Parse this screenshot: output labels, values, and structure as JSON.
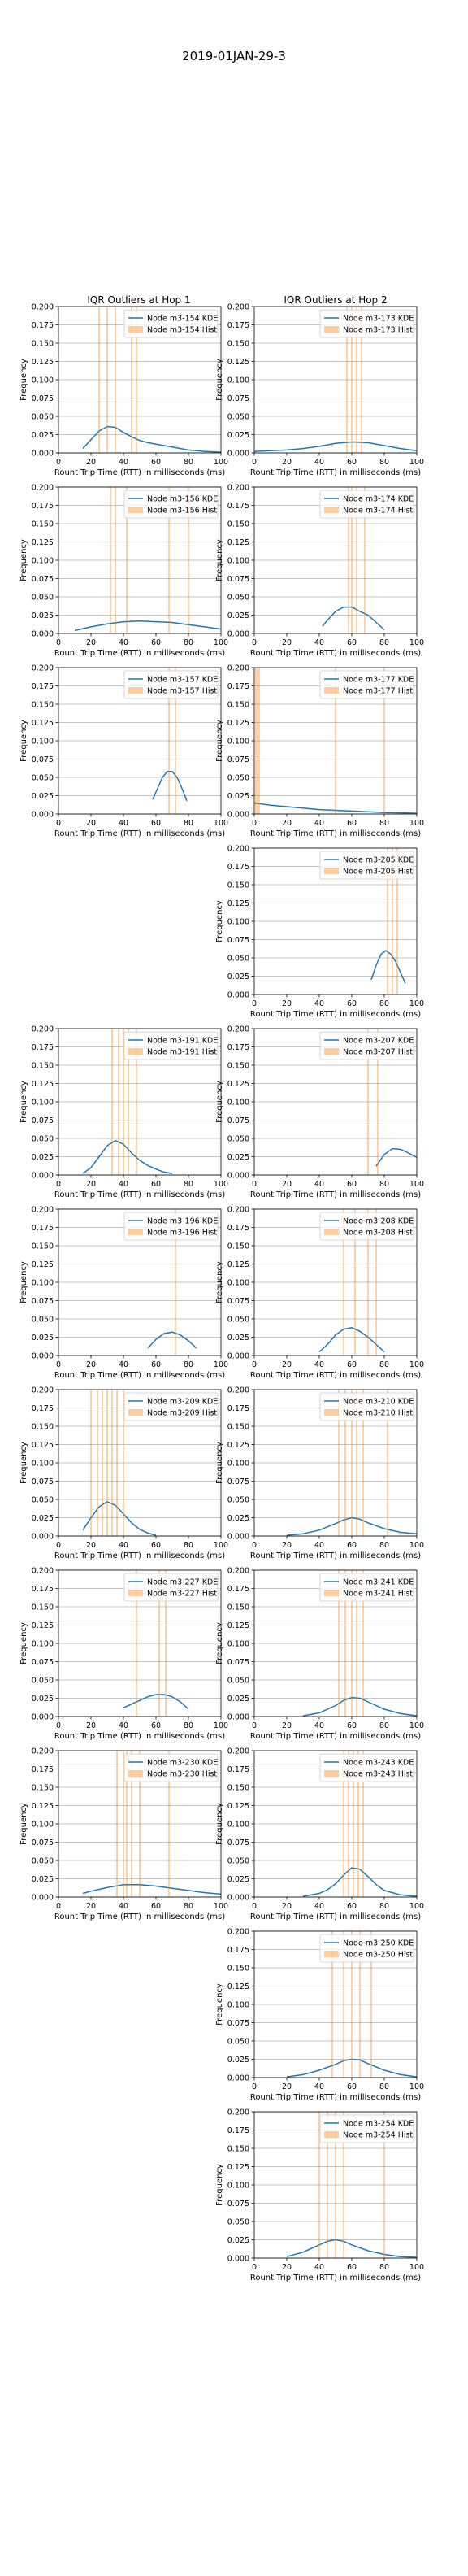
{
  "figure": {
    "suptitle": "2019-01JAN-29-3",
    "column_titles": [
      "IQR Outliers at Hop 1",
      "IQR Outliers at Hop 2"
    ]
  },
  "colors": {
    "kde": "#1f77b4",
    "hist": "#ff7f0e"
  },
  "axes_common": {
    "xlabel": "Rount Trip Time (RTT) in milliseconds (ms)",
    "ylabel": "Frequency",
    "xlim": [
      0,
      100
    ],
    "ylim": [
      0,
      0.2
    ],
    "xticks": [
      0,
      20,
      40,
      60,
      80,
      100
    ],
    "yticks": [
      "0.000",
      "0.025",
      "0.050",
      "0.075",
      "0.100",
      "0.125",
      "0.150",
      "0.175",
      "0.200"
    ],
    "grid": "y",
    "legend": "top-right"
  },
  "chart_data": [
    {
      "type": "line",
      "row": 0,
      "col": 0,
      "series": [
        {
          "name": "Node m3-154 KDE",
          "kind": "kde",
          "x": [
            15,
            20,
            25,
            30,
            35,
            40,
            45,
            50,
            55,
            60,
            65,
            70,
            75,
            80,
            85,
            90,
            95,
            100
          ],
          "y": [
            0.006,
            0.018,
            0.03,
            0.036,
            0.035,
            0.028,
            0.022,
            0.017,
            0.014,
            0.012,
            0.01,
            0.008,
            0.006,
            0.004,
            0.003,
            0.002,
            0.0015,
            0.001
          ]
        },
        {
          "name": "Node m3-154 Hist",
          "kind": "hist",
          "x": [
            25,
            30,
            35,
            45,
            48
          ],
          "height": 0.2
        }
      ]
    },
    {
      "type": "line",
      "row": 0,
      "col": 1,
      "series": [
        {
          "name": "Node m3-173 KDE",
          "kind": "kde",
          "x": [
            0,
            10,
            20,
            30,
            40,
            50,
            60,
            70,
            80,
            90,
            100
          ],
          "y": [
            0.002,
            0.003,
            0.004,
            0.006,
            0.009,
            0.013,
            0.015,
            0.014,
            0.01,
            0.006,
            0.003
          ]
        },
        {
          "name": "Node m3-173 Hist",
          "kind": "hist",
          "x": [
            57,
            60,
            63,
            66
          ],
          "height": 0.2
        }
      ]
    },
    {
      "type": "line",
      "row": 1,
      "col": 0,
      "series": [
        {
          "name": "Node m3-156 KDE",
          "kind": "kde",
          "x": [
            10,
            20,
            30,
            40,
            50,
            60,
            70,
            80,
            90,
            100
          ],
          "y": [
            0.004,
            0.009,
            0.013,
            0.016,
            0.017,
            0.016,
            0.015,
            0.012,
            0.009,
            0.006
          ]
        },
        {
          "name": "Node m3-156 Hist",
          "kind": "hist",
          "x": [
            32,
            35,
            42,
            68,
            80
          ],
          "height": 0.2
        }
      ]
    },
    {
      "type": "line",
      "row": 1,
      "col": 1,
      "series": [
        {
          "name": "Node m3-174 KDE",
          "kind": "kde",
          "x": [
            42,
            45,
            50,
            55,
            60,
            65,
            70,
            75,
            80
          ],
          "y": [
            0.01,
            0.018,
            0.03,
            0.036,
            0.036,
            0.03,
            0.025,
            0.015,
            0.005
          ]
        },
        {
          "name": "Node m3-174 Hist",
          "kind": "hist",
          "x": [
            58,
            60,
            63,
            68
          ],
          "height": 0.2
        }
      ]
    },
    {
      "type": "line",
      "row": 2,
      "col": 0,
      "series": [
        {
          "name": "Node m3-157 KDE",
          "kind": "kde",
          "x": [
            58,
            61,
            64,
            67,
            70,
            73,
            76,
            79
          ],
          "y": [
            0.02,
            0.035,
            0.05,
            0.058,
            0.058,
            0.05,
            0.035,
            0.018
          ]
        },
        {
          "name": "Node m3-157 Hist",
          "kind": "hist",
          "x": [
            68,
            72
          ],
          "height": 0.2
        }
      ]
    },
    {
      "type": "line",
      "row": 2,
      "col": 1,
      "series": [
        {
          "name": "Node m3-177 KDE",
          "kind": "kde",
          "x": [
            0,
            10,
            20,
            30,
            40,
            50,
            60,
            70,
            80,
            90,
            100
          ],
          "y": [
            0.015,
            0.012,
            0.01,
            0.008,
            0.006,
            0.005,
            0.004,
            0.003,
            0.002,
            0.0015,
            0.001
          ]
        },
        {
          "name": "Node m3-177 Hist",
          "kind": "hist",
          "x": [
            1,
            2,
            3,
            50,
            80
          ],
          "height": 0.2
        }
      ]
    },
    {
      "type": "line",
      "row": 3,
      "col": 1,
      "series": [
        {
          "name": "Node m3-205 KDE",
          "kind": "kde",
          "x": [
            72,
            75,
            78,
            81,
            84,
            87,
            90,
            93
          ],
          "y": [
            0.02,
            0.04,
            0.055,
            0.06,
            0.055,
            0.045,
            0.03,
            0.015
          ]
        },
        {
          "name": "Node m3-205 Hist",
          "kind": "hist",
          "x": [
            82,
            85,
            88
          ],
          "height": 0.2
        }
      ]
    },
    {
      "type": "line",
      "row": 4,
      "col": 0,
      "series": [
        {
          "name": "Node m3-191 KDE",
          "kind": "kde",
          "x": [
            15,
            20,
            25,
            30,
            35,
            40,
            45,
            50,
            55,
            60,
            65,
            70
          ],
          "y": [
            0.002,
            0.01,
            0.025,
            0.04,
            0.047,
            0.042,
            0.03,
            0.02,
            0.013,
            0.008,
            0.004,
            0.002
          ]
        },
        {
          "name": "Node m3-191 Hist",
          "kind": "hist",
          "x": [
            33,
            37,
            40,
            43,
            48
          ],
          "height": 0.2
        }
      ]
    },
    {
      "type": "line",
      "row": 4,
      "col": 1,
      "series": [
        {
          "name": "Node m3-207 KDE",
          "kind": "kde",
          "x": [
            75,
            80,
            85,
            90,
            95,
            100
          ],
          "y": [
            0.012,
            0.028,
            0.036,
            0.035,
            0.03,
            0.024
          ]
        },
        {
          "name": "Node m3-207 Hist",
          "kind": "hist",
          "x": [
            70,
            76
          ],
          "height": 0.2
        }
      ]
    },
    {
      "type": "line",
      "row": 5,
      "col": 0,
      "series": [
        {
          "name": "Node m3-196 KDE",
          "kind": "kde",
          "x": [
            55,
            60,
            65,
            70,
            75,
            80,
            85
          ],
          "y": [
            0.01,
            0.022,
            0.03,
            0.032,
            0.028,
            0.02,
            0.01
          ]
        },
        {
          "name": "Node m3-196 Hist",
          "kind": "hist",
          "x": [
            72
          ],
          "height": 0.2
        }
      ]
    },
    {
      "type": "line",
      "row": 5,
      "col": 1,
      "series": [
        {
          "name": "Node m3-208 KDE",
          "kind": "kde",
          "x": [
            40,
            45,
            50,
            55,
            60,
            65,
            70,
            75,
            80
          ],
          "y": [
            0.005,
            0.015,
            0.028,
            0.036,
            0.038,
            0.033,
            0.025,
            0.015,
            0.005
          ]
        },
        {
          "name": "Node m3-208 Hist",
          "kind": "hist",
          "x": [
            55,
            62,
            70,
            75
          ],
          "height": 0.2
        }
      ]
    },
    {
      "type": "line",
      "row": 6,
      "col": 0,
      "series": [
        {
          "name": "Node m3-209 KDE",
          "kind": "kde",
          "x": [
            15,
            20,
            25,
            30,
            35,
            40,
            45,
            50,
            55,
            60
          ],
          "y": [
            0.008,
            0.025,
            0.04,
            0.047,
            0.042,
            0.03,
            0.018,
            0.009,
            0.004,
            0.001
          ]
        },
        {
          "name": "Node m3-209 Hist",
          "kind": "hist",
          "x": [
            20,
            24,
            27,
            30,
            33,
            36,
            40
          ],
          "height": 0.2
        }
      ]
    },
    {
      "type": "line",
      "row": 6,
      "col": 1,
      "series": [
        {
          "name": "Node m3-210 KDE",
          "kind": "kde",
          "x": [
            20,
            30,
            40,
            50,
            55,
            60,
            65,
            70,
            80,
            90,
            100
          ],
          "y": [
            0.001,
            0.003,
            0.008,
            0.017,
            0.022,
            0.025,
            0.023,
            0.018,
            0.01,
            0.005,
            0.003
          ]
        },
        {
          "name": "Node m3-210 Hist",
          "kind": "hist",
          "x": [
            52,
            56,
            60,
            63,
            67,
            82
          ],
          "height": 0.2
        }
      ]
    },
    {
      "type": "line",
      "row": 7,
      "col": 0,
      "series": [
        {
          "name": "Node m3-227 KDE",
          "kind": "kde",
          "x": [
            40,
            45,
            50,
            55,
            60,
            65,
            70,
            75,
            80
          ],
          "y": [
            0.012,
            0.017,
            0.022,
            0.027,
            0.03,
            0.03,
            0.027,
            0.02,
            0.01
          ]
        },
        {
          "name": "Node m3-227 Hist",
          "kind": "hist",
          "x": [
            48,
            62,
            66
          ],
          "height": 0.2
        }
      ]
    },
    {
      "type": "line",
      "row": 7,
      "col": 1,
      "series": [
        {
          "name": "Node m3-241 KDE",
          "kind": "kde",
          "x": [
            30,
            40,
            50,
            55,
            60,
            65,
            70,
            80,
            90,
            100
          ],
          "y": [
            0.001,
            0.005,
            0.015,
            0.022,
            0.026,
            0.025,
            0.02,
            0.01,
            0.004,
            0.001
          ]
        },
        {
          "name": "Node m3-241 Hist",
          "kind": "hist",
          "x": [
            52,
            56,
            60,
            63,
            67
          ],
          "height": 0.2
        }
      ]
    },
    {
      "type": "line",
      "row": 8,
      "col": 0,
      "series": [
        {
          "name": "Node m3-230 KDE",
          "kind": "kde",
          "x": [
            15,
            20,
            30,
            40,
            50,
            60,
            70,
            80,
            90,
            100
          ],
          "y": [
            0.005,
            0.008,
            0.013,
            0.017,
            0.017,
            0.015,
            0.012,
            0.009,
            0.006,
            0.004
          ]
        },
        {
          "name": "Node m3-230 Hist",
          "kind": "hist",
          "x": [
            36,
            40,
            42,
            45,
            50,
            68
          ],
          "height": 0.2
        }
      ]
    },
    {
      "type": "line",
      "row": 8,
      "col": 1,
      "series": [
        {
          "name": "Node m3-243 KDE",
          "kind": "kde",
          "x": [
            30,
            40,
            45,
            50,
            55,
            60,
            65,
            70,
            75,
            80,
            90,
            100
          ],
          "y": [
            0.001,
            0.005,
            0.01,
            0.018,
            0.03,
            0.04,
            0.038,
            0.028,
            0.017,
            0.009,
            0.003,
            0.001
          ]
        },
        {
          "name": "Node m3-243 Hist",
          "kind": "hist",
          "x": [
            55,
            58,
            61,
            64,
            67
          ],
          "height": 0.2
        }
      ]
    },
    {
      "type": "line",
      "row": 9,
      "col": 1,
      "series": [
        {
          "name": "Node m3-250 KDE",
          "kind": "kde",
          "x": [
            20,
            30,
            40,
            50,
            55,
            60,
            65,
            70,
            80,
            90,
            100
          ],
          "y": [
            0.001,
            0.004,
            0.01,
            0.018,
            0.023,
            0.025,
            0.024,
            0.019,
            0.01,
            0.004,
            0.001
          ]
        },
        {
          "name": "Node m3-250 Hist",
          "kind": "hist",
          "x": [
            48,
            55,
            60,
            65,
            72
          ],
          "height": 0.2
        }
      ]
    },
    {
      "type": "line",
      "row": 10,
      "col": 1,
      "series": [
        {
          "name": "Node m3-254 KDE",
          "kind": "kde",
          "x": [
            20,
            30,
            40,
            45,
            50,
            55,
            60,
            70,
            80,
            90,
            100
          ],
          "y": [
            0.002,
            0.008,
            0.018,
            0.023,
            0.025,
            0.023,
            0.018,
            0.01,
            0.005,
            0.002,
            0.001
          ]
        },
        {
          "name": "Node m3-254 Hist",
          "kind": "hist",
          "x": [
            40,
            45,
            50,
            55,
            80
          ],
          "height": 0.2
        }
      ]
    }
  ]
}
